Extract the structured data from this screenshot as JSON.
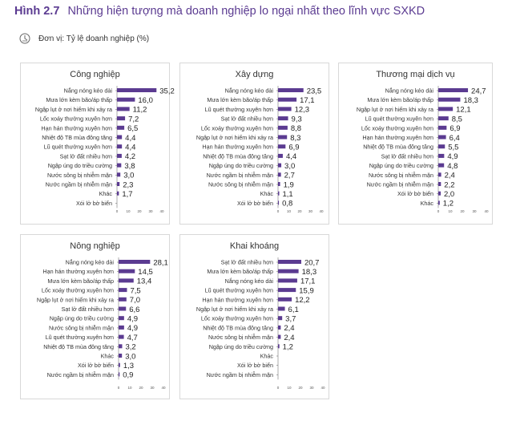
{
  "figure": {
    "label": "Hình 2.7",
    "title": "Những hiện tượng mà doanh nghiệp lo ngại nhất theo lĩnh vực SXKD",
    "unit": "Đơn vị: Tỷ lệ doanh nghiệp (%)",
    "bar_color": "#5b3b91",
    "title_color": "#5b3b91"
  },
  "chart_data": [
    {
      "type": "bar",
      "orientation": "horizontal",
      "title": "Công nghiệp",
      "categories": [
        "Nắng nóng kéo dài",
        "Mưa lớn kèm bão/áp thấp",
        "Ngập lụt ở nơi hiếm khi xảy ra",
        "Lốc xoáy thường xuyên hơn",
        "Hạn hán thường xuyên hơn",
        "Nhiệt độ TB mùa đông tăng",
        "Lũ quét thường xuyên hơn",
        "Sạt lở đất nhiều hơn",
        "Ngập úng do triều cường",
        "Nước sông bị nhiễm mặn",
        "Nước ngầm bị nhiễm mặn",
        "Khác",
        "Xói lở bờ biển"
      ],
      "values": [
        35.2,
        16.0,
        11.2,
        7.2,
        6.5,
        4.4,
        4.4,
        4.2,
        3.8,
        3.0,
        2.3,
        1.7,
        null
      ],
      "value_labels": [
        "35,2",
        "16,0",
        "11,2",
        "7,2",
        "6,5",
        "4,4",
        "4,4",
        "4,2",
        "3,8",
        "3,0",
        "2,3",
        "1,7",
        ""
      ],
      "xlim": [
        0,
        40
      ],
      "ticks": [
        "0",
        "10",
        "20",
        "30",
        "40"
      ]
    },
    {
      "type": "bar",
      "orientation": "horizontal",
      "title": "Xây dựng",
      "categories": [
        "Nắng nóng kéo dài",
        "Mưa lớn kèm bão/áp thấp",
        "Lũ quét thường xuyên hơn",
        "Sạt lở đất nhiều hơn",
        "Lốc xoáy thường xuyên hơn",
        "Ngập lụt ở nơi hiếm khi xảy ra",
        "Hạn hán thường xuyên hơn",
        "Nhiệt độ TB mùa đông tăng",
        "Ngập úng do triều cường",
        "Nước ngầm bị nhiễm mặn",
        "Nước sông bị nhiễm mặn",
        "Khác",
        "Xói lở bờ biển"
      ],
      "values": [
        23.5,
        17.1,
        12.3,
        9.3,
        8.8,
        8.3,
        6.9,
        4.4,
        3.0,
        2.7,
        1.9,
        1.1,
        0.8
      ],
      "value_labels": [
        "23,5",
        "17,1",
        "12,3",
        "9,3",
        "8,8",
        "8,3",
        "6,9",
        "4,4",
        "3,0",
        "2,7",
        "1,9",
        "1,1",
        "0,8"
      ],
      "xlim": [
        0,
        40
      ],
      "ticks": [
        "0",
        "10",
        "20",
        "30",
        "40"
      ]
    },
    {
      "type": "bar",
      "orientation": "horizontal",
      "title": "Thương mại dịch vụ",
      "categories": [
        "Nắng nóng kéo dài",
        "Mưa lớn kèm bão/áp thấp",
        "Ngập lụt ở nơi hiếm khi xảy ra",
        "Lũ quét thường xuyên hơn",
        "Lốc xoáy thường xuyên hơn",
        "Hạn hán thường xuyên hơn",
        "Nhiệt độ TB mùa đông tăng",
        "Sạt lở đất nhiều hơn",
        "Ngập úng do triều cường",
        "Nước sông bị nhiễm mặn",
        "Nước ngầm bị nhiễm mặn",
        "Xói lở bờ biển",
        "Khác"
      ],
      "values": [
        24.7,
        18.3,
        12.1,
        8.5,
        6.9,
        6.4,
        5.5,
        4.9,
        4.8,
        2.4,
        2.2,
        2.0,
        1.2
      ],
      "value_labels": [
        "24,7",
        "18,3",
        "12,1",
        "8,5",
        "6,9",
        "6,4",
        "5,5",
        "4,9",
        "4,8",
        "2,4",
        "2,2",
        "2,0",
        "1,2"
      ],
      "xlim": [
        0,
        40
      ],
      "ticks": [
        "0",
        "10",
        "20",
        "30",
        "40"
      ]
    },
    {
      "type": "bar",
      "orientation": "horizontal",
      "title": "Nông nghiệp",
      "categories": [
        "Nắng nóng kéo dài",
        "Hạn hán thường xuyên hơn",
        "Mưa lớn kèm bão/áp thấp",
        "Lốc xoáy thường xuyên hơn",
        "Ngập lụt ở nơi hiếm khi xảy ra",
        "Sạt lở đất nhiều hơn",
        "Ngập úng do triều cường",
        "Nước sông bị nhiễm mặn",
        "Lũ quét thường xuyên hơn",
        "Nhiệt độ TB mùa đông tăng",
        "Khác",
        "Xói lở bờ biển",
        "Nước ngầm bị nhiễm mặn"
      ],
      "values": [
        28.1,
        14.5,
        13.4,
        7.5,
        7.0,
        6.6,
        4.9,
        4.9,
        4.7,
        3.2,
        3.0,
        1.3,
        0.9
      ],
      "value_labels": [
        "28,1",
        "14,5",
        "13,4",
        "7,5",
        "7,0",
        "6,6",
        "4,9",
        "4,9",
        "4,7",
        "3,2",
        "3,0",
        "1,3",
        "0,9"
      ],
      "xlim": [
        0,
        40
      ],
      "ticks": [
        "0",
        "10",
        "20",
        "30",
        "40"
      ]
    },
    {
      "type": "bar",
      "orientation": "horizontal",
      "title": "Khai khoáng",
      "categories": [
        "Sạt lở đất nhiều hơn",
        "Mưa lớn kèm bão/áp thấp",
        "Nắng nóng kéo dài",
        "Lũ quét thường xuyên hơn",
        "Hạn hán thường xuyên hơn",
        "Ngập lụt ở nơi hiếm khi xảy ra",
        "Lốc xoáy thường xuyên hơn",
        "Nhiệt độ TB mùa đông tăng",
        "Nước sông bị nhiễm mặn",
        "Ngập úng do triều cường",
        "Khác",
        "Xói lở bờ biển",
        "Nước ngầm bị nhiễm mặn"
      ],
      "values": [
        20.7,
        18.3,
        17.1,
        15.9,
        12.2,
        6.1,
        3.7,
        2.4,
        2.4,
        1.2,
        null,
        null,
        null
      ],
      "value_labels": [
        "20,7",
        "18,3",
        "17,1",
        "15,9",
        "12,2",
        "6,1",
        "3,7",
        "2,4",
        "2,4",
        "1,2",
        "",
        "",
        ""
      ],
      "xlim": [
        0,
        40
      ],
      "ticks": [
        "0",
        "10",
        "20",
        "30",
        "40"
      ]
    }
  ]
}
